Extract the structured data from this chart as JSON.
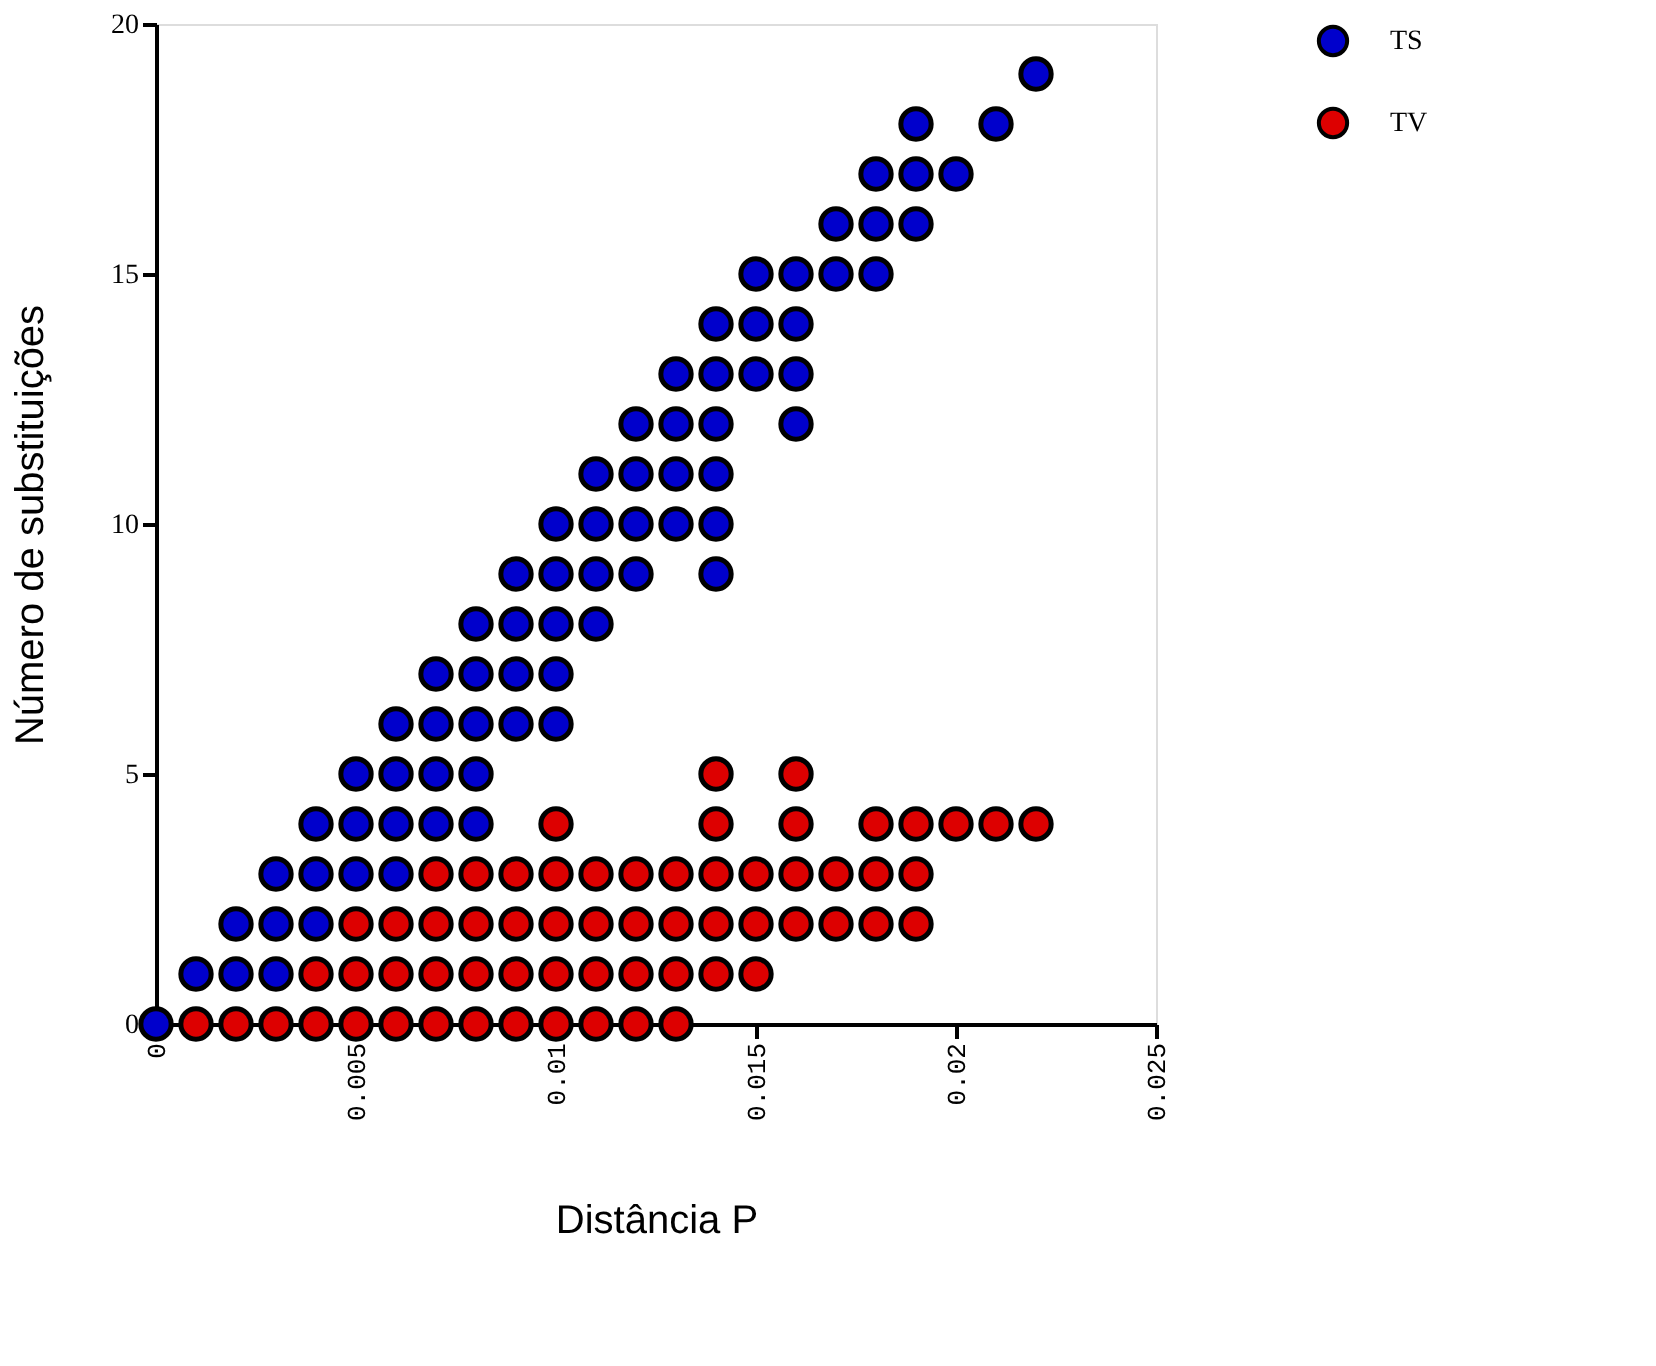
{
  "chart_data": {
    "type": "scatter",
    "xlabel": "Distância P",
    "ylabel": "Número de substituições",
    "xlim": [
      0,
      0.025
    ],
    "ylim": [
      0,
      20
    ],
    "xticks": [
      0,
      0.005,
      0.01,
      0.015,
      0.02,
      0.025
    ],
    "yticks": [
      0,
      5,
      10,
      15,
      20
    ],
    "grid": false,
    "legend": "right",
    "marker": "circle",
    "series": [
      {
        "name": "TS",
        "color": "#0000cc",
        "x": [
          0,
          0.001,
          0.002,
          0.003,
          0.002,
          0.003,
          0.004,
          0.003,
          0.004,
          0.005,
          0.006,
          0.004,
          0.005,
          0.006,
          0.007,
          0.008,
          0.005,
          0.006,
          0.007,
          0.008,
          0.006,
          0.007,
          0.008,
          0.009,
          0.01,
          0.007,
          0.008,
          0.009,
          0.01,
          0.008,
          0.009,
          0.01,
          0.011,
          0.009,
          0.01,
          0.011,
          0.012,
          0.014,
          0.01,
          0.011,
          0.012,
          0.013,
          0.014,
          0.011,
          0.012,
          0.013,
          0.014,
          0.012,
          0.013,
          0.014,
          0.016,
          0.013,
          0.014,
          0.015,
          0.016,
          0.014,
          0.015,
          0.016,
          0.015,
          0.016,
          0.017,
          0.018,
          0.017,
          0.018,
          0.019,
          0.018,
          0.019,
          0.02,
          0.019,
          0.021,
          0.022
        ],
        "values": [
          0,
          1,
          1,
          1,
          2,
          2,
          2,
          3,
          3,
          3,
          3,
          4,
          4,
          4,
          4,
          4,
          5,
          5,
          5,
          5,
          6,
          6,
          6,
          6,
          6,
          7,
          7,
          7,
          7,
          8,
          8,
          8,
          8,
          9,
          9,
          9,
          9,
          9,
          10,
          10,
          10,
          10,
          10,
          11,
          11,
          11,
          11,
          12,
          12,
          12,
          12,
          13,
          13,
          13,
          13,
          14,
          14,
          14,
          15,
          15,
          15,
          15,
          16,
          16,
          16,
          17,
          17,
          17,
          18,
          18,
          19
        ]
      },
      {
        "name": "TV",
        "color": "#dd0000",
        "x": [
          0.001,
          0.002,
          0.003,
          0.004,
          0.005,
          0.006,
          0.007,
          0.008,
          0.009,
          0.01,
          0.011,
          0.012,
          0.013,
          0.004,
          0.005,
          0.006,
          0.007,
          0.008,
          0.009,
          0.01,
          0.011,
          0.012,
          0.013,
          0.014,
          0.015,
          0.005,
          0.006,
          0.007,
          0.008,
          0.009,
          0.01,
          0.011,
          0.012,
          0.013,
          0.014,
          0.015,
          0.016,
          0.017,
          0.018,
          0.019,
          0.007,
          0.008,
          0.009,
          0.01,
          0.011,
          0.012,
          0.013,
          0.014,
          0.015,
          0.016,
          0.017,
          0.018,
          0.019,
          0.01,
          0.014,
          0.016,
          0.018,
          0.019,
          0.02,
          0.021,
          0.022,
          0.014,
          0.016
        ],
        "values": [
          0,
          0,
          0,
          0,
          0,
          0,
          0,
          0,
          0,
          0,
          0,
          0,
          0,
          1,
          1,
          1,
          1,
          1,
          1,
          1,
          1,
          1,
          1,
          1,
          1,
          2,
          2,
          2,
          2,
          2,
          2,
          2,
          2,
          2,
          2,
          2,
          2,
          2,
          2,
          2,
          3,
          3,
          3,
          3,
          3,
          3,
          3,
          3,
          3,
          3,
          3,
          3,
          3,
          4,
          4,
          4,
          4,
          4,
          4,
          4,
          4,
          5,
          5
        ]
      }
    ]
  }
}
